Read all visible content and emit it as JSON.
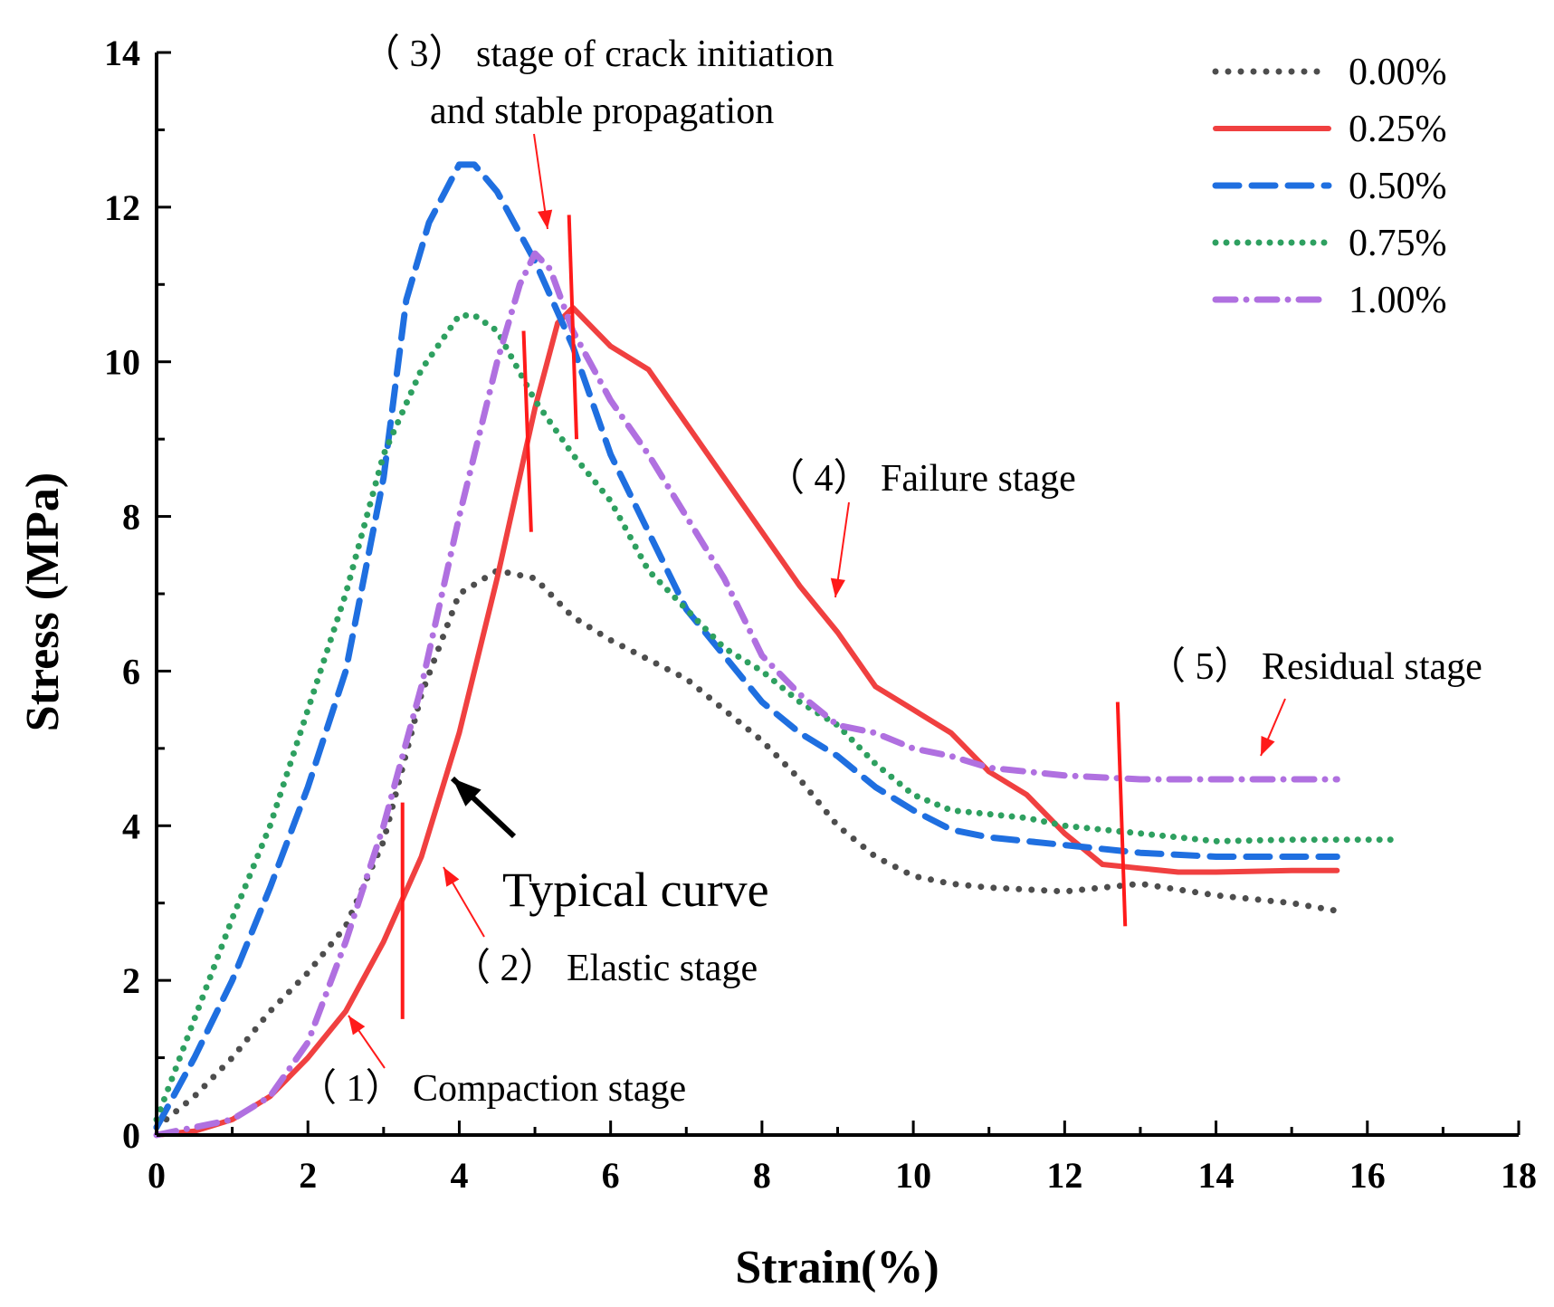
{
  "chart_data": {
    "type": "line",
    "xlabel": "Strain(%)",
    "ylabel": "Stress (MPa)",
    "xlim": [
      0,
      18
    ],
    "ylim": [
      0,
      14
    ],
    "xticks": [
      "0",
      "2",
      "4",
      "6",
      "8",
      "10",
      "12",
      "14",
      "16",
      "18"
    ],
    "yticks": [
      "0",
      "2",
      "4",
      "6",
      "8",
      "10",
      "12",
      "14"
    ],
    "legend_position": "top-right",
    "series": [
      {
        "name": "0.00%",
        "color": "#4d4d4d",
        "dash": "dot",
        "x": [
          0,
          0.5,
          1.0,
          1.5,
          2.0,
          2.5,
          3.0,
          3.5,
          4.0,
          4.5,
          5.0,
          5.5,
          6.0,
          7.0,
          8.0,
          8.5,
          9.0,
          9.5,
          10.0,
          10.5,
          11.0,
          12.0,
          13.0,
          14.0,
          15.0,
          15.6
        ],
        "y": [
          0.1,
          0.5,
          1.0,
          1.6,
          2.1,
          2.7,
          3.8,
          5.7,
          7.0,
          7.3,
          7.2,
          6.7,
          6.4,
          5.9,
          5.1,
          4.6,
          4.0,
          3.6,
          3.35,
          3.25,
          3.2,
          3.15,
          3.25,
          3.1,
          3.0,
          2.9
        ]
      },
      {
        "name": "0.25%",
        "color": "#f04040",
        "dash": "solid",
        "x": [
          0,
          0.5,
          1.0,
          1.5,
          2.0,
          2.5,
          3.0,
          3.5,
          4.0,
          4.5,
          5.0,
          5.3,
          5.5,
          5.8,
          6.0,
          6.5,
          7.0,
          7.5,
          8.0,
          8.5,
          9.0,
          9.5,
          10.0,
          10.5,
          11.0,
          11.5,
          12.0,
          12.5,
          13.0,
          13.5,
          14.0,
          15.0,
          15.6
        ],
        "y": [
          0.0,
          0.05,
          0.2,
          0.5,
          1.0,
          1.6,
          2.5,
          3.6,
          5.2,
          7.2,
          9.4,
          10.5,
          10.7,
          10.4,
          10.2,
          9.9,
          9.2,
          8.5,
          7.8,
          7.1,
          6.5,
          5.8,
          5.5,
          5.2,
          4.7,
          4.4,
          3.9,
          3.5,
          3.45,
          3.4,
          3.4,
          3.42,
          3.42
        ]
      },
      {
        "name": "0.50%",
        "color": "#1f6fe0",
        "dash": "dash",
        "x": [
          0,
          0.5,
          1.0,
          1.5,
          2.0,
          2.5,
          3.0,
          3.3,
          3.6,
          4.0,
          4.2,
          4.5,
          5.0,
          5.5,
          6.0,
          6.5,
          7.0,
          7.5,
          8.0,
          8.5,
          9.0,
          9.5,
          10.0,
          10.5,
          11.0,
          12.0,
          13.0,
          14.0,
          15.0,
          15.6
        ],
        "y": [
          0.1,
          1.0,
          2.0,
          3.2,
          4.5,
          6.0,
          8.5,
          10.8,
          11.8,
          12.55,
          12.55,
          12.2,
          11.3,
          10.2,
          8.8,
          7.8,
          6.8,
          6.2,
          5.6,
          5.2,
          4.9,
          4.5,
          4.2,
          3.95,
          3.85,
          3.75,
          3.65,
          3.6,
          3.6,
          3.6
        ]
      },
      {
        "name": "0.75%",
        "color": "#2ea060",
        "dash": "dashdot-short",
        "x": [
          0,
          0.5,
          1.0,
          1.5,
          2.0,
          2.5,
          3.0,
          3.5,
          4.0,
          4.2,
          4.5,
          5.0,
          5.5,
          6.0,
          6.5,
          7.0,
          7.5,
          8.0,
          8.5,
          9.0,
          9.5,
          10.0,
          10.5,
          11.0,
          11.5,
          12.0,
          12.5,
          13.0,
          13.5,
          14.0,
          15.0,
          16.4
        ],
        "y": [
          0.2,
          1.5,
          2.8,
          4.0,
          5.5,
          7.0,
          8.8,
          9.9,
          10.6,
          10.6,
          10.4,
          9.5,
          8.8,
          8.2,
          7.3,
          6.8,
          6.3,
          6.0,
          5.6,
          5.3,
          4.8,
          4.4,
          4.2,
          4.15,
          4.1,
          4.0,
          3.95,
          3.9,
          3.85,
          3.8,
          3.82,
          3.82
        ]
      },
      {
        "name": "1.00%",
        "color": "#b070e0",
        "dash": "dashdot",
        "x": [
          0,
          0.5,
          1.0,
          1.5,
          2.0,
          2.5,
          3.0,
          3.5,
          4.0,
          4.5,
          4.8,
          5.0,
          5.2,
          5.5,
          6.0,
          6.5,
          7.0,
          7.5,
          8.0,
          8.5,
          9.0,
          9.5,
          10.0,
          10.5,
          11.0,
          12.0,
          13.0,
          14.0,
          15.0,
          15.6
        ],
        "y": [
          0.0,
          0.1,
          0.2,
          0.5,
          1.2,
          2.5,
          4.0,
          5.8,
          8.0,
          10.0,
          11.0,
          11.4,
          11.2,
          10.4,
          9.5,
          8.8,
          8.0,
          7.2,
          6.2,
          5.7,
          5.3,
          5.2,
          5.0,
          4.9,
          4.75,
          4.65,
          4.6,
          4.6,
          4.6,
          4.6
        ]
      }
    ],
    "annotations": [
      {
        "text": "（ 3） stage of crack initiation"
      },
      {
        "text": "and stable propagation"
      },
      {
        "text": "（ 4） Failure stage"
      },
      {
        "text": "（ 5） Residual stage"
      },
      {
        "text": "Typical curve"
      },
      {
        "text": "（ 2） Elastic stage"
      },
      {
        "text": "（ 1） Compaction stage"
      }
    ]
  }
}
